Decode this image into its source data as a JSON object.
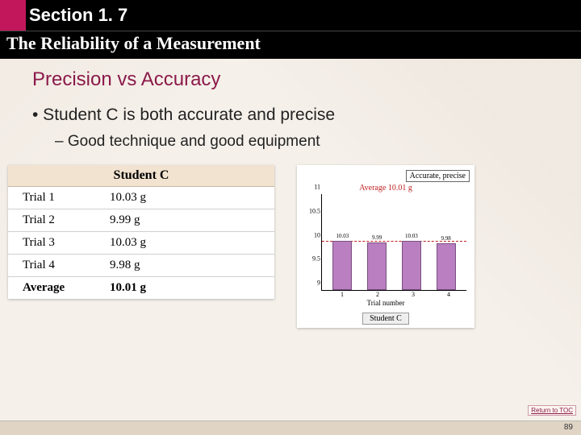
{
  "header": {
    "section_label": "Section 1. 7",
    "subtitle": "The Reliability of a Measurement",
    "pink_color": "#c2185b"
  },
  "slide": {
    "title": "Precision vs Accuracy",
    "title_color": "#8b1a4a",
    "bullet1": "•  Student C is both accurate and precise",
    "bullet2": "–  Good technique and good equipment"
  },
  "table": {
    "header": "Student C",
    "header_bg": "#f2e3d0",
    "rows": [
      {
        "label": "Trial 1",
        "value": "10.03 g"
      },
      {
        "label": "Trial 2",
        "value": "9.99 g"
      },
      {
        "label": "Trial 3",
        "value": "10.03 g"
      },
      {
        "label": "Trial 4",
        "value": "9.98 g"
      }
    ],
    "average": {
      "label": "Average",
      "value": "10.01 g"
    }
  },
  "chart": {
    "type": "bar",
    "caption_top": "Accurate, precise",
    "avg_text": "Average 10.01 g",
    "avg_color": "#c02020",
    "bar_color": "#b97fc0",
    "bar_border": "#7a4f80",
    "ylim": [
      9.0,
      11.0
    ],
    "yticks": [
      9,
      9.5,
      10,
      10.5,
      11
    ],
    "avg_value": 10.01,
    "bars": [
      {
        "x": "1",
        "value": 10.03,
        "label": "10.03"
      },
      {
        "x": "2",
        "value": 9.99,
        "label": "9.99"
      },
      {
        "x": "3",
        "value": 10.03,
        "label": "10.03"
      },
      {
        "x": "4",
        "value": 9.98,
        "label": "9.98"
      }
    ],
    "x_axis_title": "Trial number",
    "caption_bottom": "Student C"
  },
  "footer": {
    "return_toc": "Return to TOC",
    "page_number": "89"
  }
}
